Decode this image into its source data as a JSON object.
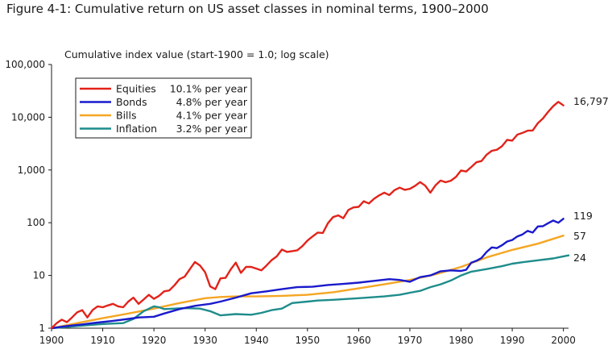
{
  "figure_title": "Figure 4-1: Cumulative return on US asset classes in nominal terms, 1900–2000",
  "chart_data": {
    "type": "line",
    "title": "Figure 4-1: Cumulative return on US asset classes in nominal terms, 1900–2000",
    "ylabel": "Cumulative index value (start-1900 = 1.0; log scale)",
    "xlabel": "",
    "yscale": "log",
    "xlim": [
      1900,
      2001
    ],
    "ylim": [
      1,
      100000
    ],
    "x_ticks": [
      "1900",
      "1910",
      "1920",
      "1930",
      "1940",
      "1950",
      "1960",
      "1970",
      "1980",
      "1990",
      "2000"
    ],
    "y_ticks": [
      "1",
      "10",
      "100",
      "1,000",
      "10,000",
      "100,000"
    ],
    "grid": false,
    "legend_position": "top-left",
    "series": [
      {
        "name": "Equities",
        "rate": "10.1% per year",
        "color": "#e2231a",
        "end_label": "16,797",
        "points": [
          [
            1900,
            1.0
          ],
          [
            1901,
            1.25
          ],
          [
            1902,
            1.45
          ],
          [
            1903,
            1.3
          ],
          [
            1904,
            1.6
          ],
          [
            1905,
            2.0
          ],
          [
            1906,
            2.2
          ],
          [
            1907,
            1.6
          ],
          [
            1908,
            2.2
          ],
          [
            1909,
            2.6
          ],
          [
            1910,
            2.5
          ],
          [
            1911,
            2.7
          ],
          [
            1912,
            2.9
          ],
          [
            1913,
            2.6
          ],
          [
            1914,
            2.5
          ],
          [
            1915,
            3.2
          ],
          [
            1916,
            3.8
          ],
          [
            1917,
            2.9
          ],
          [
            1918,
            3.5
          ],
          [
            1919,
            4.3
          ],
          [
            1920,
            3.6
          ],
          [
            1921,
            4.1
          ],
          [
            1922,
            5.0
          ],
          [
            1923,
            5.2
          ],
          [
            1924,
            6.5
          ],
          [
            1925,
            8.5
          ],
          [
            1926,
            9.5
          ],
          [
            1927,
            13
          ],
          [
            1928,
            18
          ],
          [
            1929,
            15.5
          ],
          [
            1930,
            11.5
          ],
          [
            1931,
            6.2
          ],
          [
            1932,
            5.5
          ],
          [
            1933,
            8.8
          ],
          [
            1934,
            9.0
          ],
          [
            1935,
            13
          ],
          [
            1936,
            17.5
          ],
          [
            1937,
            11.2
          ],
          [
            1938,
            14.5
          ],
          [
            1939,
            14.5
          ],
          [
            1940,
            13.5
          ],
          [
            1941,
            12.5
          ],
          [
            1942,
            15.5
          ],
          [
            1943,
            19.5
          ],
          [
            1944,
            23
          ],
          [
            1945,
            31
          ],
          [
            1946,
            28
          ],
          [
            1947,
            29
          ],
          [
            1948,
            30
          ],
          [
            1949,
            36
          ],
          [
            1950,
            46
          ],
          [
            1951,
            55
          ],
          [
            1952,
            65
          ],
          [
            1953,
            64
          ],
          [
            1954,
            98
          ],
          [
            1955,
            128
          ],
          [
            1956,
            138
          ],
          [
            1957,
            122
          ],
          [
            1958,
            175
          ],
          [
            1959,
            195
          ],
          [
            1960,
            200
          ],
          [
            1961,
            255
          ],
          [
            1962,
            232
          ],
          [
            1963,
            285
          ],
          [
            1964,
            330
          ],
          [
            1965,
            372
          ],
          [
            1966,
            335
          ],
          [
            1967,
            415
          ],
          [
            1968,
            462
          ],
          [
            1969,
            420
          ],
          [
            1970,
            438
          ],
          [
            1971,
            498
          ],
          [
            1972,
            590
          ],
          [
            1973,
            505
          ],
          [
            1974,
            372
          ],
          [
            1975,
            510
          ],
          [
            1976,
            630
          ],
          [
            1977,
            585
          ],
          [
            1978,
            625
          ],
          [
            1979,
            740
          ],
          [
            1980,
            980
          ],
          [
            1981,
            935
          ],
          [
            1982,
            1140
          ],
          [
            1983,
            1400
          ],
          [
            1984,
            1480
          ],
          [
            1985,
            1950
          ],
          [
            1986,
            2310
          ],
          [
            1987,
            2420
          ],
          [
            1988,
            2830
          ],
          [
            1989,
            3720
          ],
          [
            1990,
            3600
          ],
          [
            1991,
            4680
          ],
          [
            1992,
            5050
          ],
          [
            1993,
            5560
          ],
          [
            1994,
            5620
          ],
          [
            1995,
            7720
          ],
          [
            1996,
            9480
          ],
          [
            1997,
            12600
          ],
          [
            1998,
            16200
          ],
          [
            1999,
            19600
          ],
          [
            2000,
            16797
          ]
        ]
      },
      {
        "name": "Bonds",
        "rate": "4.8% per year",
        "color": "#1a1acc",
        "end_label": "119",
        "points": [
          [
            1900,
            1.0
          ],
          [
            1903,
            1.1
          ],
          [
            1906,
            1.18
          ],
          [
            1909,
            1.28
          ],
          [
            1912,
            1.38
          ],
          [
            1915,
            1.5
          ],
          [
            1917,
            1.6
          ],
          [
            1920,
            1.65
          ],
          [
            1922,
            1.9
          ],
          [
            1925,
            2.3
          ],
          [
            1928,
            2.65
          ],
          [
            1931,
            2.9
          ],
          [
            1933,
            3.2
          ],
          [
            1936,
            3.8
          ],
          [
            1939,
            4.6
          ],
          [
            1942,
            5.0
          ],
          [
            1945,
            5.5
          ],
          [
            1948,
            6.0
          ],
          [
            1951,
            6.1
          ],
          [
            1954,
            6.6
          ],
          [
            1957,
            6.9
          ],
          [
            1960,
            7.3
          ],
          [
            1963,
            7.9
          ],
          [
            1966,
            8.5
          ],
          [
            1968,
            8.2
          ],
          [
            1970,
            7.6
          ],
          [
            1972,
            9.3
          ],
          [
            1974,
            10.0
          ],
          [
            1976,
            12.0
          ],
          [
            1978,
            12.5
          ],
          [
            1980,
            12.2
          ],
          [
            1981,
            12.8
          ],
          [
            1982,
            17.5
          ],
          [
            1983,
            19.0
          ],
          [
            1984,
            21.5
          ],
          [
            1985,
            28.0
          ],
          [
            1986,
            34.0
          ],
          [
            1987,
            33.0
          ],
          [
            1988,
            37.5
          ],
          [
            1989,
            44.0
          ],
          [
            1990,
            47.0
          ],
          [
            1991,
            55.0
          ],
          [
            1992,
            60.0
          ],
          [
            1993,
            70.0
          ],
          [
            1994,
            65.0
          ],
          [
            1995,
            85.0
          ],
          [
            1996,
            86.0
          ],
          [
            1997,
            98.0
          ],
          [
            1998,
            110.0
          ],
          [
            1999,
            100.0
          ],
          [
            2000,
            119.0
          ]
        ]
      },
      {
        "name": "Bills",
        "rate": "4.1% per year",
        "color": "#f5a623",
        "end_label": "57",
        "points": [
          [
            1900,
            1.0
          ],
          [
            1905,
            1.25
          ],
          [
            1910,
            1.55
          ],
          [
            1915,
            1.9
          ],
          [
            1920,
            2.35
          ],
          [
            1925,
            3.0
          ],
          [
            1930,
            3.7
          ],
          [
            1933,
            3.9
          ],
          [
            1936,
            4.0
          ],
          [
            1940,
            4.0
          ],
          [
            1945,
            4.1
          ],
          [
            1950,
            4.3
          ],
          [
            1955,
            4.8
          ],
          [
            1960,
            5.7
          ],
          [
            1965,
            6.8
          ],
          [
            1970,
            8.2
          ],
          [
            1975,
            10.5
          ],
          [
            1980,
            14.5
          ],
          [
            1985,
            22.0
          ],
          [
            1990,
            30.5
          ],
          [
            1995,
            40.0
          ],
          [
            2000,
            57.0
          ]
        ]
      },
      {
        "name": "Inflation",
        "rate": "3.2% per year",
        "color": "#1f8c8c",
        "end_label": "24",
        "points": [
          [
            1900,
            1.0
          ],
          [
            1905,
            1.1
          ],
          [
            1910,
            1.2
          ],
          [
            1914,
            1.25
          ],
          [
            1916,
            1.5
          ],
          [
            1918,
            2.1
          ],
          [
            1920,
            2.6
          ],
          [
            1921,
            2.5
          ],
          [
            1922,
            2.3
          ],
          [
            1926,
            2.4
          ],
          [
            1929,
            2.35
          ],
          [
            1931,
            2.1
          ],
          [
            1933,
            1.75
          ],
          [
            1936,
            1.85
          ],
          [
            1939,
            1.8
          ],
          [
            1941,
            1.95
          ],
          [
            1943,
            2.2
          ],
          [
            1945,
            2.35
          ],
          [
            1947,
            3.0
          ],
          [
            1950,
            3.2
          ],
          [
            1952,
            3.35
          ],
          [
            1955,
            3.45
          ],
          [
            1960,
            3.7
          ],
          [
            1965,
            4.0
          ],
          [
            1968,
            4.3
          ],
          [
            1970,
            4.7
          ],
          [
            1972,
            5.1
          ],
          [
            1974,
            6.0
          ],
          [
            1976,
            6.8
          ],
          [
            1978,
            8.0
          ],
          [
            1980,
            10.0
          ],
          [
            1982,
            11.8
          ],
          [
            1985,
            13.2
          ],
          [
            1988,
            15.0
          ],
          [
            1990,
            16.7
          ],
          [
            1992,
            17.8
          ],
          [
            1995,
            19.4
          ],
          [
            1998,
            21.0
          ],
          [
            2000,
            23.0
          ],
          [
            2001,
            24.0
          ]
        ]
      }
    ]
  }
}
